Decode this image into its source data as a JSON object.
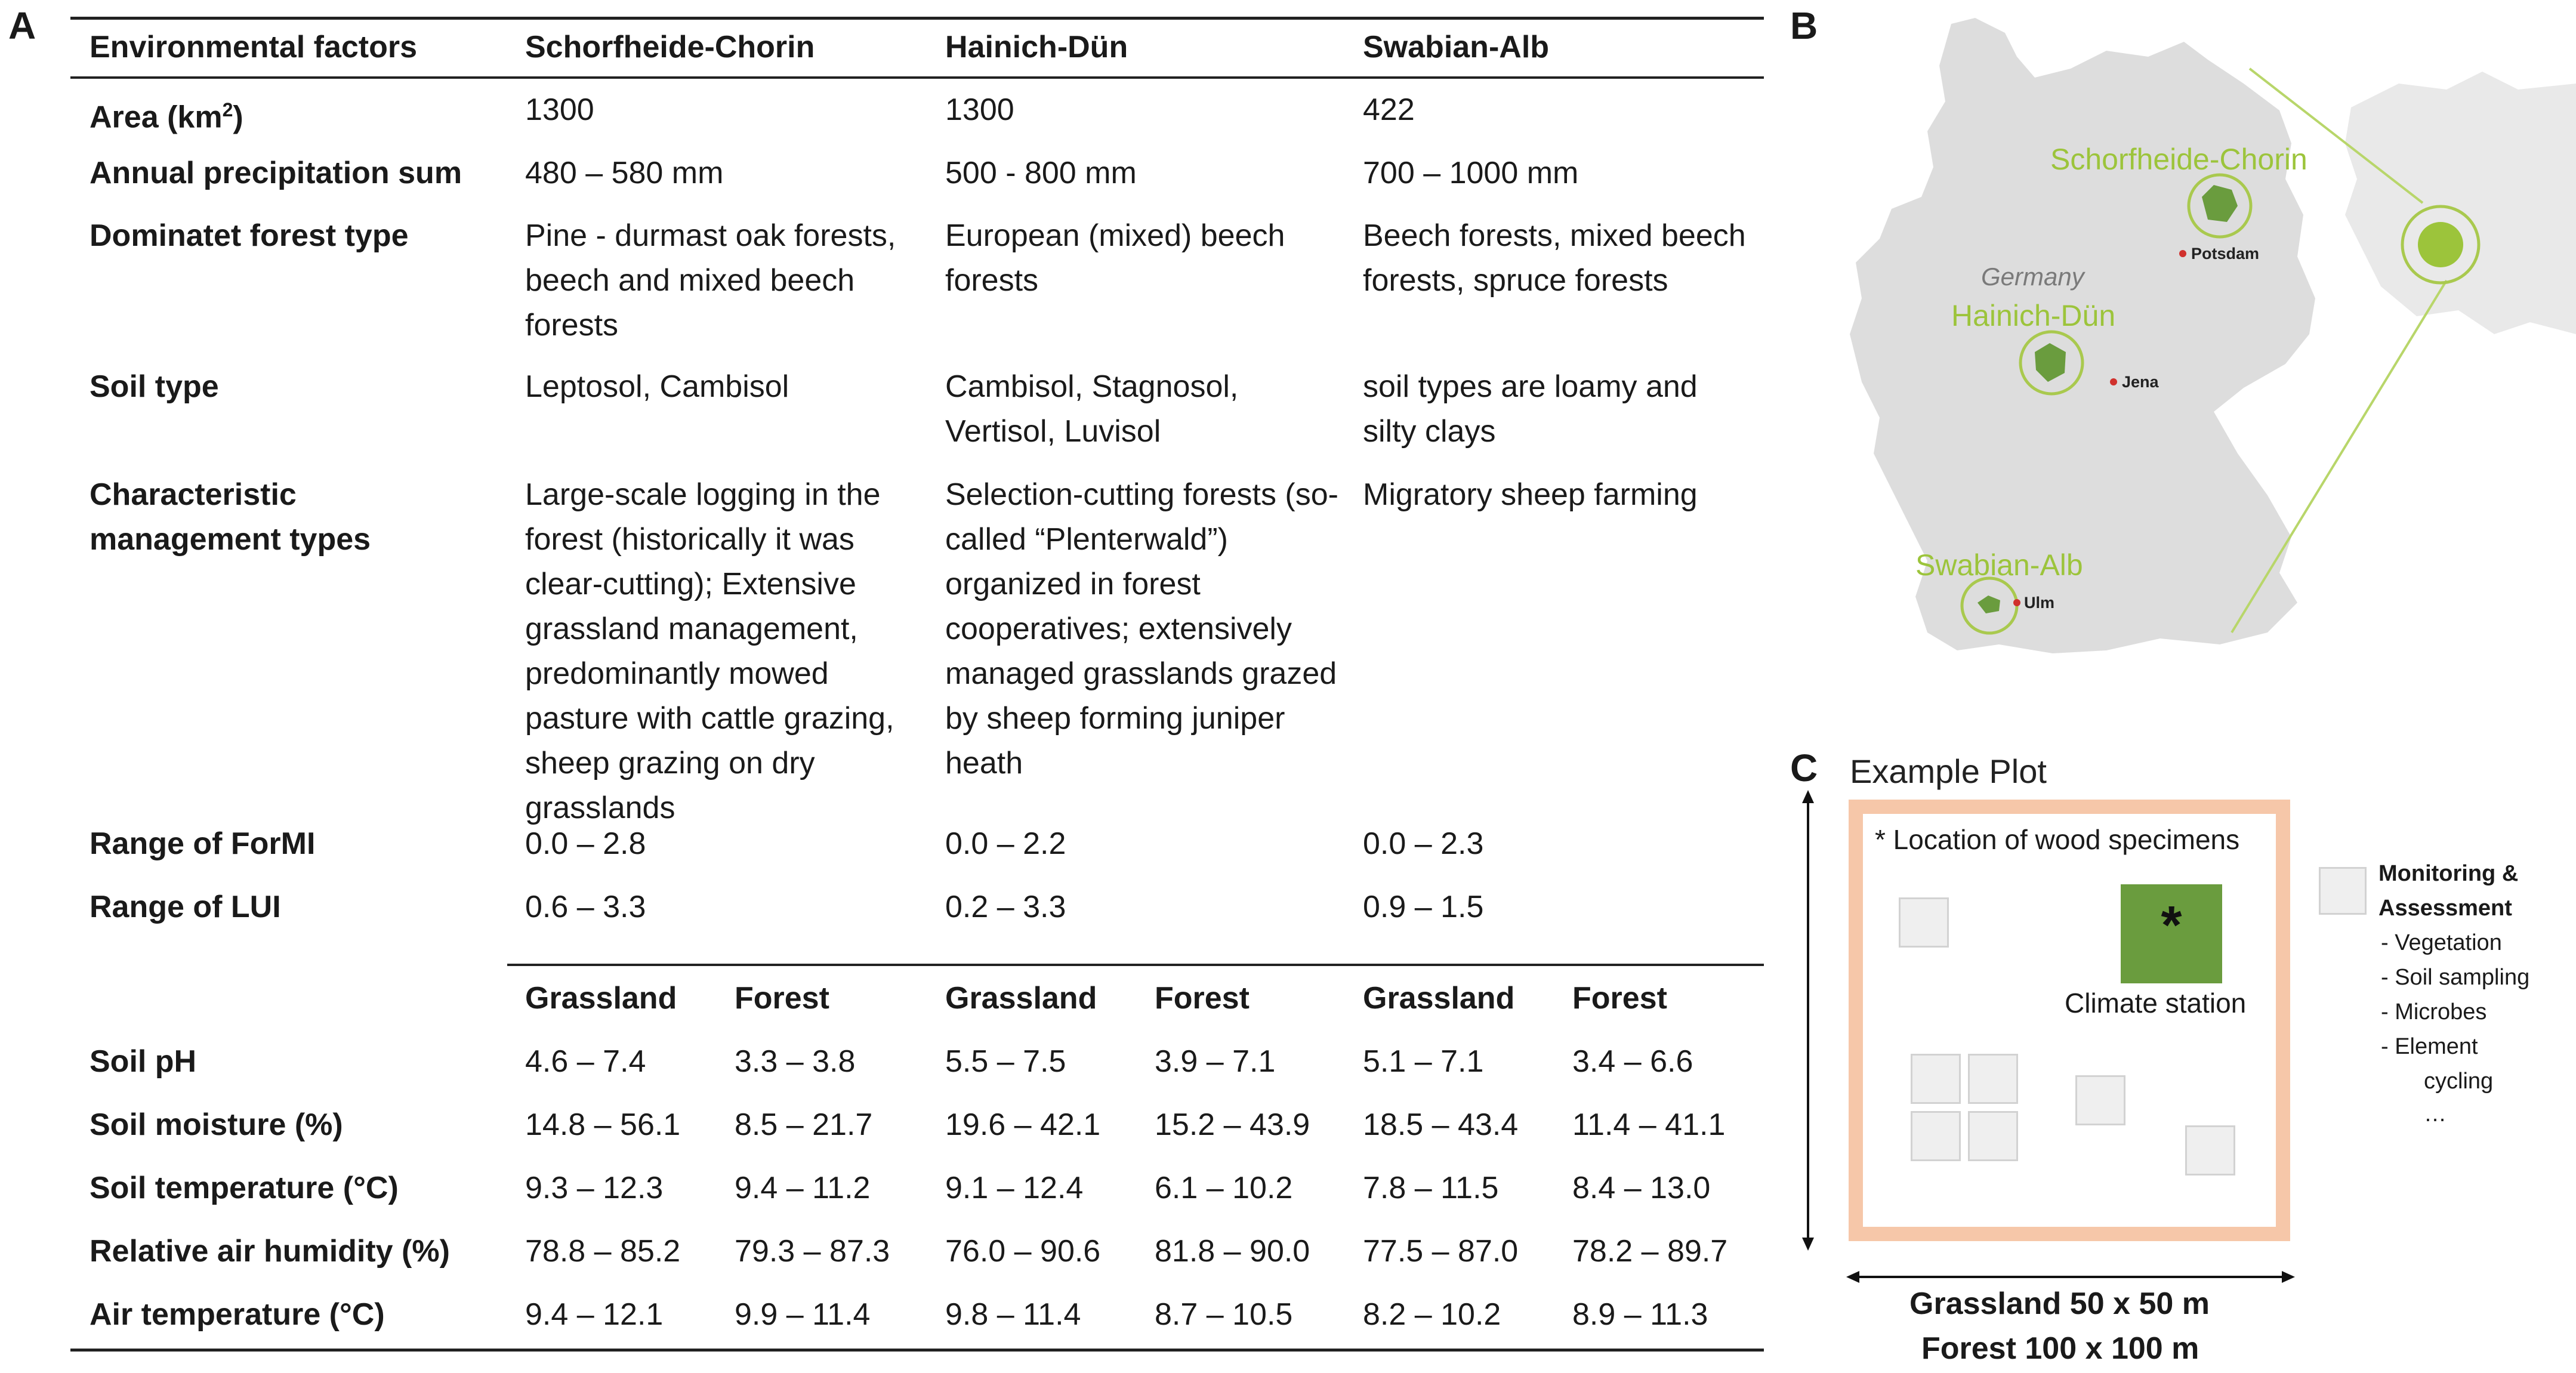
{
  "panels": {
    "a": "A",
    "b": "B",
    "c": "C"
  },
  "table": {
    "headers": [
      "Environmental factors",
      "Schorfheide-Chorin",
      "Hainich-Dün",
      "Swabian-Alb"
    ],
    "area": {
      "label_base": "Area (km",
      "label_sup": "2",
      "label_end": ")",
      "values": [
        "1300",
        "1300",
        "422"
      ]
    },
    "precip": {
      "label": "Annual precipitation sum",
      "values": [
        "480 – 580 mm",
        "500 - 800 mm",
        "700 – 1000 mm"
      ]
    },
    "forest_type": {
      "label": "Dominatet forest type",
      "values": [
        "Pine - durmast oak forests, beech and mixed beech forests",
        "European (mixed) beech forests",
        "Beech forests, mixed beech forests, spruce forests"
      ]
    },
    "soil_type": {
      "label": "Soil type",
      "values": [
        "Leptosol, Cambisol",
        "Cambisol, Stagnosol, Vertisol, Luvisol",
        "soil types are loamy and silty clays"
      ]
    },
    "management": {
      "label": "Characteristic management types",
      "values": [
        "Large-scale logging in the forest (historically it was clear-cutting); Extensive grassland management, predominantly mowed pasture with cattle grazing, sheep grazing on dry grasslands",
        "Selection-cutting forests (so-called “Plenterwald”) organized in forest cooperatives; extensively managed grasslands grazed by sheep forming juniper heath",
        "Migratory sheep farming"
      ]
    },
    "formi": {
      "label": "Range of ForMI",
      "values": [
        "0.0 – 2.8",
        "0.0 – 2.2",
        "0.0 – 2.3"
      ]
    },
    "lui": {
      "label": "Range of LUI",
      "values": [
        "0.6 – 3.3",
        "0.2 – 3.3",
        "0.9 – 1.5"
      ]
    },
    "subheaders": [
      "Grassland",
      "Forest",
      "Grassland",
      "Forest",
      "Grassland",
      "Forest"
    ],
    "rows": [
      {
        "label": "Soil pH",
        "values": [
          "4.6 – 7.4",
          "3.3 – 3.8",
          "5.5 – 7.5",
          "3.9 – 7.1",
          "5.1 – 7.1",
          "3.4 – 6.6"
        ]
      },
      {
        "label": "Soil moisture (%)",
        "values": [
          "14.8 – 56.1",
          "8.5 – 21.7",
          "19.6 – 42.1",
          "15.2 – 43.9",
          "18.5 – 43.4",
          "11.4 – 41.1"
        ]
      },
      {
        "label": "Soil temperature (°C)",
        "values": [
          "9.3 – 12.3",
          "9.4 – 11.2",
          "9.1 – 12.4",
          "6.1 – 10.2",
          "7.8 – 11.5",
          "8.4 – 13.0"
        ]
      },
      {
        "label": "Relative air humidity (%)",
        "values": [
          "78.8 – 85.2",
          "79.3 – 87.3",
          "76.0 – 90.6",
          "81.8 – 90.0",
          "77.5 – 87.0",
          "78.2 – 89.7"
        ]
      },
      {
        "label": "Air temperature (°C)",
        "values": [
          "9.4 – 12.1",
          "9.9 – 11.4",
          "9.8 – 11.4",
          "8.7 – 10.5",
          "8.2 – 10.2",
          "8.9 – 11.3"
        ]
      }
    ]
  },
  "map": {
    "country": "Germany",
    "sites": [
      "Schorfheide-Chorin",
      "Hainich-Dün",
      "Swabian-Alb"
    ],
    "cities": [
      "Potsdam",
      "Jena",
      "Ulm"
    ],
    "colors": {
      "land": "#dddddd",
      "site": "#6a9c3e",
      "ring": "#a9c94e",
      "city": "#d0312d"
    }
  },
  "plot": {
    "title": "Example Plot",
    "wood_note": "* Location of wood specimens",
    "asterisk": "*",
    "climate_label": "Climate station",
    "legend_title_1": "Monitoring &",
    "legend_title_2": "Assessment",
    "legend_items": [
      "-   Vegetation",
      "-   Soil sampling",
      "-   Microbes",
      "-   Element",
      "cycling",
      "…"
    ],
    "grassland_size": "Grassland 50 x 50 m",
    "forest_size": "Forest 100 x 100 m",
    "colors": {
      "border": "#f6c7a9",
      "climate": "#6a9c3e"
    }
  }
}
